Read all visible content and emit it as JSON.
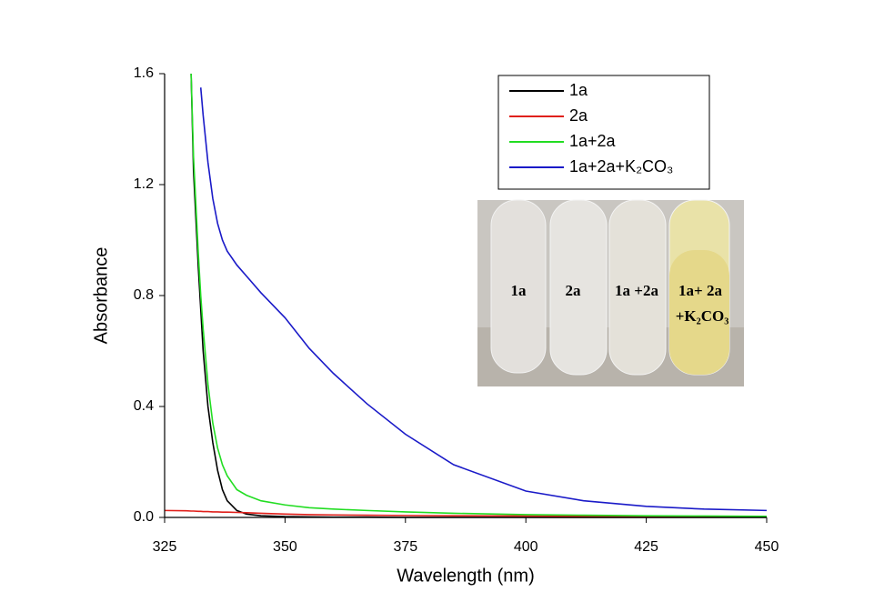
{
  "chart_data": {
    "type": "line",
    "x_label": "Wavelength (nm)",
    "y_label": "Absorbance",
    "x": [
      325,
      329.5,
      330.5,
      331,
      332,
      332.5,
      333,
      334,
      335,
      336,
      337,
      338,
      340,
      342,
      345,
      350,
      355,
      360,
      367,
      375,
      385,
      400,
      412,
      425,
      437,
      450
    ],
    "series": [
      {
        "name": "1a",
        "color": "#000000",
        "values": [
          null,
          null,
          1.6,
          1.25,
          0.9,
          0.75,
          0.6,
          0.4,
          0.27,
          0.17,
          0.1,
          0.06,
          0.025,
          0.012,
          0.006,
          0.003,
          0.002,
          0.001,
          0.001,
          0,
          0,
          0,
          0,
          0,
          0,
          0
        ]
      },
      {
        "name": "2a",
        "color": "#e0201b",
        "values": [
          0.025,
          0.024,
          0.023,
          0.023,
          0.022,
          0.022,
          0.021,
          0.021,
          0.02,
          0.02,
          0.019,
          0.019,
          0.018,
          0.017,
          0.015,
          0.012,
          0.01,
          0.009,
          0.008,
          0.007,
          0.006,
          0.005,
          0.004,
          0.004,
          0.003,
          0.003
        ]
      },
      {
        "name": "1a+2a",
        "color": "#22dd22",
        "values": [
          null,
          null,
          1.6,
          1.3,
          0.95,
          0.8,
          0.68,
          0.48,
          0.34,
          0.25,
          0.19,
          0.15,
          0.1,
          0.08,
          0.06,
          0.045,
          0.035,
          0.03,
          0.025,
          0.02,
          0.015,
          0.01,
          0.008,
          0.006,
          0.005,
          0.004
        ]
      },
      {
        "name": "1a+2a+K₂CO₃",
        "color": "#1a1ac8",
        "values": [
          null,
          null,
          null,
          null,
          null,
          1.55,
          1.45,
          1.28,
          1.15,
          1.06,
          1.0,
          0.96,
          0.91,
          0.87,
          0.81,
          0.72,
          0.61,
          0.52,
          0.41,
          0.3,
          0.19,
          0.095,
          0.06,
          0.04,
          0.03,
          0.025
        ]
      }
    ],
    "xlim": [
      325,
      450
    ],
    "ylim": [
      0,
      1.6
    ],
    "xticks": [
      325,
      350,
      375,
      400,
      425,
      450
    ],
    "yticks": [
      {
        "value": 0,
        "label": "0.0"
      },
      0.4,
      0.8,
      1.2,
      1.6
    ],
    "inset_labels": [
      "1a",
      "2a",
      "1a +2a",
      "1a+ 2a",
      "+K₂CO₃"
    ]
  }
}
